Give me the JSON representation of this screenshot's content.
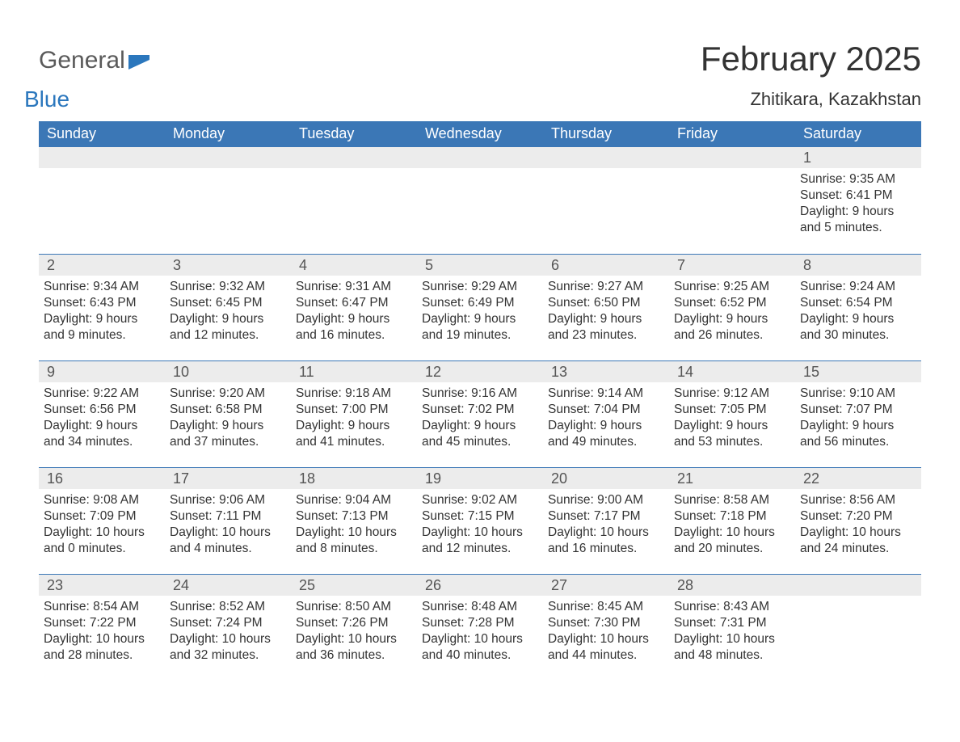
{
  "colors": {
    "header_bg": "#3b77b6",
    "header_text": "#ffffff",
    "daybar_bg": "#ececec",
    "week_border": "#3b77b6",
    "text": "#333333",
    "logo_gray": "#5a5a5a",
    "logo_blue": "#2b77bd",
    "background": "#ffffff"
  },
  "logo": {
    "part1": "General",
    "part2": "Blue"
  },
  "title": "February 2025",
  "location": "Zhitikara, Kazakhstan",
  "weekdays": [
    "Sunday",
    "Monday",
    "Tuesday",
    "Wednesday",
    "Thursday",
    "Friday",
    "Saturday"
  ],
  "weeks": [
    [
      {
        "empty": true
      },
      {
        "empty": true
      },
      {
        "empty": true
      },
      {
        "empty": true
      },
      {
        "empty": true
      },
      {
        "empty": true
      },
      {
        "num": "1",
        "sunrise": "Sunrise: 9:35 AM",
        "sunset": "Sunset: 6:41 PM",
        "day1": "Daylight: 9 hours",
        "day2": "and 5 minutes."
      }
    ],
    [
      {
        "num": "2",
        "sunrise": "Sunrise: 9:34 AM",
        "sunset": "Sunset: 6:43 PM",
        "day1": "Daylight: 9 hours",
        "day2": "and 9 minutes."
      },
      {
        "num": "3",
        "sunrise": "Sunrise: 9:32 AM",
        "sunset": "Sunset: 6:45 PM",
        "day1": "Daylight: 9 hours",
        "day2": "and 12 minutes."
      },
      {
        "num": "4",
        "sunrise": "Sunrise: 9:31 AM",
        "sunset": "Sunset: 6:47 PM",
        "day1": "Daylight: 9 hours",
        "day2": "and 16 minutes."
      },
      {
        "num": "5",
        "sunrise": "Sunrise: 9:29 AM",
        "sunset": "Sunset: 6:49 PM",
        "day1": "Daylight: 9 hours",
        "day2": "and 19 minutes."
      },
      {
        "num": "6",
        "sunrise": "Sunrise: 9:27 AM",
        "sunset": "Sunset: 6:50 PM",
        "day1": "Daylight: 9 hours",
        "day2": "and 23 minutes."
      },
      {
        "num": "7",
        "sunrise": "Sunrise: 9:25 AM",
        "sunset": "Sunset: 6:52 PM",
        "day1": "Daylight: 9 hours",
        "day2": "and 26 minutes."
      },
      {
        "num": "8",
        "sunrise": "Sunrise: 9:24 AM",
        "sunset": "Sunset: 6:54 PM",
        "day1": "Daylight: 9 hours",
        "day2": "and 30 minutes."
      }
    ],
    [
      {
        "num": "9",
        "sunrise": "Sunrise: 9:22 AM",
        "sunset": "Sunset: 6:56 PM",
        "day1": "Daylight: 9 hours",
        "day2": "and 34 minutes."
      },
      {
        "num": "10",
        "sunrise": "Sunrise: 9:20 AM",
        "sunset": "Sunset: 6:58 PM",
        "day1": "Daylight: 9 hours",
        "day2": "and 37 minutes."
      },
      {
        "num": "11",
        "sunrise": "Sunrise: 9:18 AM",
        "sunset": "Sunset: 7:00 PM",
        "day1": "Daylight: 9 hours",
        "day2": "and 41 minutes."
      },
      {
        "num": "12",
        "sunrise": "Sunrise: 9:16 AM",
        "sunset": "Sunset: 7:02 PM",
        "day1": "Daylight: 9 hours",
        "day2": "and 45 minutes."
      },
      {
        "num": "13",
        "sunrise": "Sunrise: 9:14 AM",
        "sunset": "Sunset: 7:04 PM",
        "day1": "Daylight: 9 hours",
        "day2": "and 49 minutes."
      },
      {
        "num": "14",
        "sunrise": "Sunrise: 9:12 AM",
        "sunset": "Sunset: 7:05 PM",
        "day1": "Daylight: 9 hours",
        "day2": "and 53 minutes."
      },
      {
        "num": "15",
        "sunrise": "Sunrise: 9:10 AM",
        "sunset": "Sunset: 7:07 PM",
        "day1": "Daylight: 9 hours",
        "day2": "and 56 minutes."
      }
    ],
    [
      {
        "num": "16",
        "sunrise": "Sunrise: 9:08 AM",
        "sunset": "Sunset: 7:09 PM",
        "day1": "Daylight: 10 hours",
        "day2": "and 0 minutes."
      },
      {
        "num": "17",
        "sunrise": "Sunrise: 9:06 AM",
        "sunset": "Sunset: 7:11 PM",
        "day1": "Daylight: 10 hours",
        "day2": "and 4 minutes."
      },
      {
        "num": "18",
        "sunrise": "Sunrise: 9:04 AM",
        "sunset": "Sunset: 7:13 PM",
        "day1": "Daylight: 10 hours",
        "day2": "and 8 minutes."
      },
      {
        "num": "19",
        "sunrise": "Sunrise: 9:02 AM",
        "sunset": "Sunset: 7:15 PM",
        "day1": "Daylight: 10 hours",
        "day2": "and 12 minutes."
      },
      {
        "num": "20",
        "sunrise": "Sunrise: 9:00 AM",
        "sunset": "Sunset: 7:17 PM",
        "day1": "Daylight: 10 hours",
        "day2": "and 16 minutes."
      },
      {
        "num": "21",
        "sunrise": "Sunrise: 8:58 AM",
        "sunset": "Sunset: 7:18 PM",
        "day1": "Daylight: 10 hours",
        "day2": "and 20 minutes."
      },
      {
        "num": "22",
        "sunrise": "Sunrise: 8:56 AM",
        "sunset": "Sunset: 7:20 PM",
        "day1": "Daylight: 10 hours",
        "day2": "and 24 minutes."
      }
    ],
    [
      {
        "num": "23",
        "sunrise": "Sunrise: 8:54 AM",
        "sunset": "Sunset: 7:22 PM",
        "day1": "Daylight: 10 hours",
        "day2": "and 28 minutes."
      },
      {
        "num": "24",
        "sunrise": "Sunrise: 8:52 AM",
        "sunset": "Sunset: 7:24 PM",
        "day1": "Daylight: 10 hours",
        "day2": "and 32 minutes."
      },
      {
        "num": "25",
        "sunrise": "Sunrise: 8:50 AM",
        "sunset": "Sunset: 7:26 PM",
        "day1": "Daylight: 10 hours",
        "day2": "and 36 minutes."
      },
      {
        "num": "26",
        "sunrise": "Sunrise: 8:48 AM",
        "sunset": "Sunset: 7:28 PM",
        "day1": "Daylight: 10 hours",
        "day2": "and 40 minutes."
      },
      {
        "num": "27",
        "sunrise": "Sunrise: 8:45 AM",
        "sunset": "Sunset: 7:30 PM",
        "day1": "Daylight: 10 hours",
        "day2": "and 44 minutes."
      },
      {
        "num": "28",
        "sunrise": "Sunrise: 8:43 AM",
        "sunset": "Sunset: 7:31 PM",
        "day1": "Daylight: 10 hours",
        "day2": "and 48 minutes."
      },
      {
        "empty": true
      }
    ]
  ]
}
